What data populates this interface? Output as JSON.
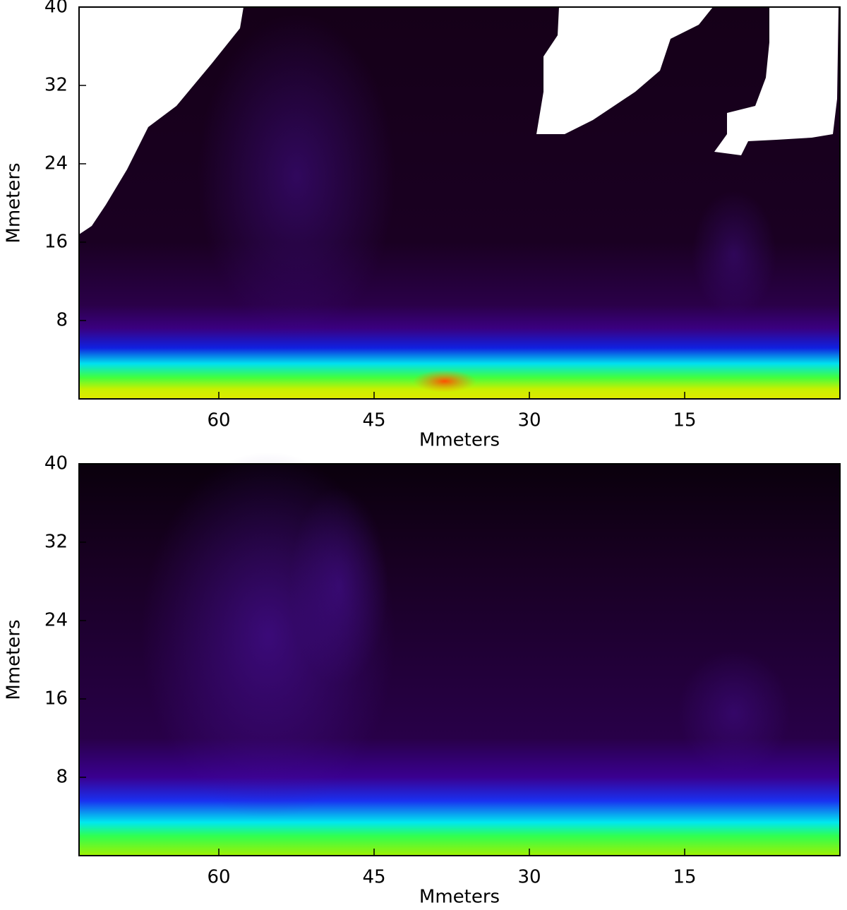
{
  "chart_data": [
    {
      "type": "heatmap",
      "xlabel": "Mmeters",
      "ylabel": "Mmeters",
      "xlim": [
        73.5,
        0
      ],
      "xticks": [
        60,
        45,
        30,
        15
      ],
      "ylim": [
        0,
        40
      ],
      "yticks": [
        8,
        16,
        24,
        32,
        40
      ]
    },
    {
      "type": "heatmap",
      "xlabel": "Mmeters",
      "ylabel": "Mmeters",
      "xlim": [
        73.5,
        0
      ],
      "xticks": [
        60,
        45,
        30,
        15
      ],
      "ylim": [
        0,
        40
      ],
      "yticks": [
        8,
        16,
        24,
        32,
        40
      ]
    }
  ]
}
